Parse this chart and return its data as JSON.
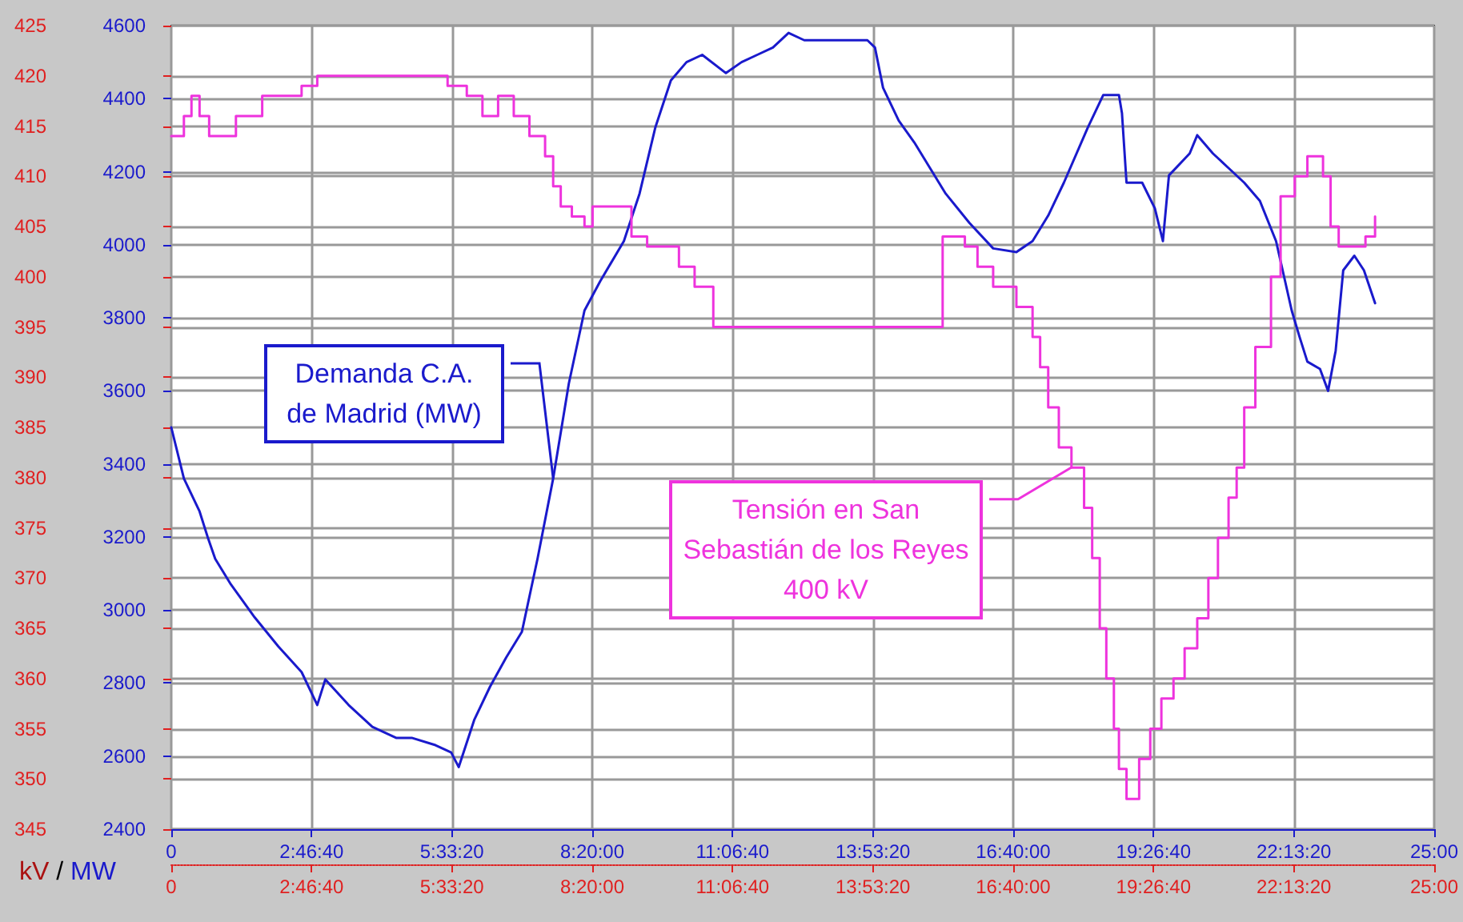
{
  "chart_data": {
    "type": "line",
    "ylabel": "MW",
    "y2label": "kV",
    "annotations": [
      "/"
    ],
    "xlim": [
      0,
      25
    ],
    "xticks": [
      {
        "value": 0,
        "label": "0"
      },
      {
        "value": 2.7778,
        "label": "2:46:40"
      },
      {
        "value": 5.5556,
        "label": "5:33:20"
      },
      {
        "value": 8.3333,
        "label": "8:20:00"
      },
      {
        "value": 11.1111,
        "label": "11:06:40"
      },
      {
        "value": 13.8889,
        "label": "13:53:20"
      },
      {
        "value": 16.6667,
        "label": "16:40:00"
      },
      {
        "value": 19.4444,
        "label": "19:26:40"
      },
      {
        "value": 22.2222,
        "label": "22:13:20"
      },
      {
        "value": 25,
        "label": "25:00"
      }
    ],
    "x2lim": [
      0,
      25
    ],
    "x2ticks": [
      {
        "value": 0,
        "label": "0"
      },
      {
        "value": 2.7778,
        "label": "2:46:40"
      },
      {
        "value": 5.5556,
        "label": "5:33:20"
      },
      {
        "value": 8.3333,
        "label": "8:20:00"
      },
      {
        "value": 11.1111,
        "label": "11:06:40"
      },
      {
        "value": 13.8889,
        "label": "13:53:20"
      },
      {
        "value": 16.6667,
        "label": "16:40:00"
      },
      {
        "value": 19.4444,
        "label": "19:26:40"
      },
      {
        "value": 22.2222,
        "label": "22:13:20"
      },
      {
        "value": 25,
        "label": "25:00"
      }
    ],
    "ylim": [
      2400,
      4600
    ],
    "yticks": [
      2400,
      2600,
      2800,
      3000,
      3200,
      3400,
      3600,
      3800,
      4000,
      4200,
      4400,
      4600
    ],
    "y2lim": [
      345,
      425
    ],
    "y2ticks": [
      345,
      350,
      355,
      360,
      365,
      370,
      375,
      380,
      385,
      390,
      395,
      400,
      405,
      410,
      415,
      420,
      425
    ],
    "grid": true,
    "marker": "none",
    "series": [
      {
        "name": "Demanda C.A. de Madrid (MW)",
        "color": "#1a1acc",
        "x": [
          0,
          0.25,
          0.56,
          0.72,
          0.87,
          1.18,
          1.65,
          2.12,
          2.58,
          2.89,
          3.05,
          3.51,
          3.98,
          4.45,
          4.76,
          5.23,
          5.54,
          5.69,
          6.0,
          6.31,
          6.63,
          6.94,
          7.25,
          7.56,
          7.87,
          8.18,
          8.49,
          8.96,
          9.27,
          9.58,
          9.89,
          10.2,
          10.51,
          10.98,
          11.29,
          11.6,
          11.91,
          12.22,
          12.53,
          13.16,
          13.78,
          13.93,
          14.09,
          14.4,
          14.71,
          15.02,
          15.33,
          15.8,
          16.27,
          16.73,
          17.05,
          17.36,
          17.67,
          18.14,
          18.45,
          18.76,
          18.82,
          18.91,
          19.22,
          19.47,
          19.63,
          19.75,
          20.16,
          20.31,
          20.62,
          20.93,
          21.24,
          21.55,
          21.87,
          22.18,
          22.33,
          22.49,
          22.74,
          22.9,
          23.05,
          23.2,
          23.42,
          23.61,
          23.83
        ],
        "values": [
          3500,
          3360,
          3270,
          3200,
          3140,
          3070,
          2980,
          2900,
          2830,
          2740,
          2810,
          2740,
          2680,
          2650,
          2650,
          2630,
          2610,
          2570,
          2700,
          2790,
          2870,
          2940,
          3140,
          3360,
          3620,
          3820,
          3900,
          4010,
          4140,
          4320,
          4450,
          4500,
          4520,
          4470,
          4500,
          4520,
          4540,
          4580,
          4560,
          4560,
          4560,
          4540,
          4430,
          4340,
          4280,
          4210,
          4140,
          4060,
          3990,
          3980,
          4010,
          4080,
          4170,
          4320,
          4410,
          4410,
          4360,
          4170,
          4170,
          4100,
          4010,
          4190,
          4250,
          4300,
          4250,
          4210,
          4170,
          4120,
          4010,
          3820,
          3750,
          3680,
          3660,
          3600,
          3710,
          3930,
          3970,
          3930,
          3840
        ]
      },
      {
        "name": "Tensión en San Sebastián de los Reyes 400 kV",
        "type": "step",
        "axis": "y2",
        "color": "#ee33dd",
        "x": [
          0,
          0.25,
          0.4,
          0.56,
          0.75,
          1.28,
          1.8,
          2.58,
          2.89,
          5.47,
          5.85,
          6.16,
          6.47,
          6.78,
          7.09,
          7.4,
          7.56,
          7.71,
          7.93,
          8.18,
          8.34,
          8.8,
          9.11,
          9.42,
          10.05,
          10.36,
          10.73,
          15.27,
          15.71,
          15.96,
          16.27,
          16.73,
          17.05,
          17.2,
          17.36,
          17.57,
          17.82,
          18.07,
          18.23,
          18.38,
          18.51,
          18.66,
          18.76,
          18.91,
          19.16,
          19.38,
          19.6,
          19.84,
          20.06,
          20.31,
          20.53,
          20.72,
          20.93,
          21.09,
          21.24,
          21.46,
          21.77,
          21.96,
          22.24,
          22.49,
          22.8,
          22.95,
          23.11,
          23.64,
          23.83
        ],
        "values": [
          414,
          416,
          418,
          416,
          414,
          416,
          418,
          419,
          420,
          419,
          418,
          416,
          418,
          416,
          414,
          412,
          409,
          407,
          406,
          405,
          407,
          407,
          404,
          403,
          401,
          399,
          395,
          404,
          403,
          401,
          399,
          397,
          394,
          391,
          387,
          383,
          381,
          377,
          372,
          365,
          360,
          355,
          351,
          348,
          352,
          355,
          358,
          360,
          363,
          366,
          370,
          374,
          378,
          381,
          387,
          393,
          400,
          408,
          410,
          412,
          410,
          405,
          403,
          404,
          406
        ]
      }
    ]
  }
}
